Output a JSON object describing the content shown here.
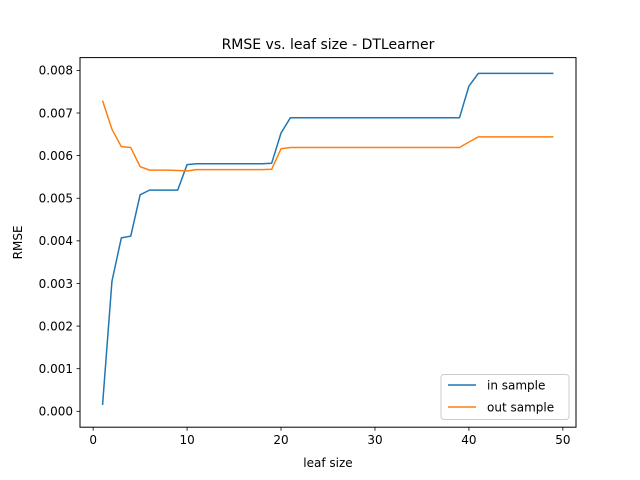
{
  "chart_data": {
    "type": "line",
    "title": "RMSE vs. leaf size - DTLearner",
    "xlabel": "leaf size",
    "ylabel": "RMSE",
    "xlim": [
      -1.4,
      51.4
    ],
    "ylim": [
      -0.0003726,
      0.0083
    ],
    "xticks": [
      0,
      10,
      20,
      30,
      40,
      50
    ],
    "xtick_labels": [
      "0",
      "10",
      "20",
      "30",
      "40",
      "50"
    ],
    "yticks": [
      0.0,
      0.001,
      0.002,
      0.003,
      0.004,
      0.005,
      0.006,
      0.007,
      0.008
    ],
    "ytick_labels": [
      "0.000",
      "0.001",
      "0.002",
      "0.003",
      "0.004",
      "0.005",
      "0.006",
      "0.007",
      "0.008"
    ],
    "grid": false,
    "legend_position": "lower-right",
    "x": [
      1,
      2,
      3,
      4,
      5,
      6,
      7,
      8,
      9,
      10,
      11,
      12,
      13,
      14,
      15,
      16,
      17,
      18,
      19,
      20,
      21,
      22,
      23,
      24,
      25,
      26,
      27,
      28,
      29,
      30,
      31,
      32,
      33,
      34,
      35,
      36,
      37,
      38,
      39,
      40,
      41,
      42,
      43,
      44,
      45,
      46,
      47,
      48,
      49
    ],
    "series": [
      {
        "name": "in sample",
        "color": "#1f77b4",
        "values": [
          0.00015,
          0.00305,
          0.00407,
          0.00411,
          0.00508,
          0.00519,
          0.00519,
          0.00519,
          0.00519,
          0.00579,
          0.00581,
          0.00581,
          0.00581,
          0.00581,
          0.00581,
          0.00581,
          0.00581,
          0.00581,
          0.00582,
          0.00653,
          0.00689,
          0.00689,
          0.00689,
          0.00689,
          0.00689,
          0.00689,
          0.00689,
          0.00689,
          0.00689,
          0.00689,
          0.00689,
          0.00689,
          0.00689,
          0.00689,
          0.00689,
          0.00689,
          0.00689,
          0.00689,
          0.00689,
          0.00763,
          0.00793,
          0.00793,
          0.00793,
          0.00793,
          0.00793,
          0.00793,
          0.00793,
          0.00793,
          0.00793
        ]
      },
      {
        "name": "out sample",
        "color": "#ff7f0e",
        "values": [
          0.00729,
          0.00662,
          0.00621,
          0.00619,
          0.00574,
          0.00566,
          0.00566,
          0.00566,
          0.00565,
          0.00564,
          0.00567,
          0.00567,
          0.00567,
          0.00567,
          0.00567,
          0.00567,
          0.00567,
          0.00567,
          0.00568,
          0.00616,
          0.00619,
          0.00619,
          0.00619,
          0.00619,
          0.00619,
          0.00619,
          0.00619,
          0.00619,
          0.00619,
          0.00619,
          0.00619,
          0.00619,
          0.00619,
          0.00619,
          0.00619,
          0.00619,
          0.00619,
          0.00619,
          0.00619,
          0.00632,
          0.00644,
          0.00644,
          0.00644,
          0.00644,
          0.00644,
          0.00644,
          0.00644,
          0.00644,
          0.00644
        ]
      }
    ]
  }
}
